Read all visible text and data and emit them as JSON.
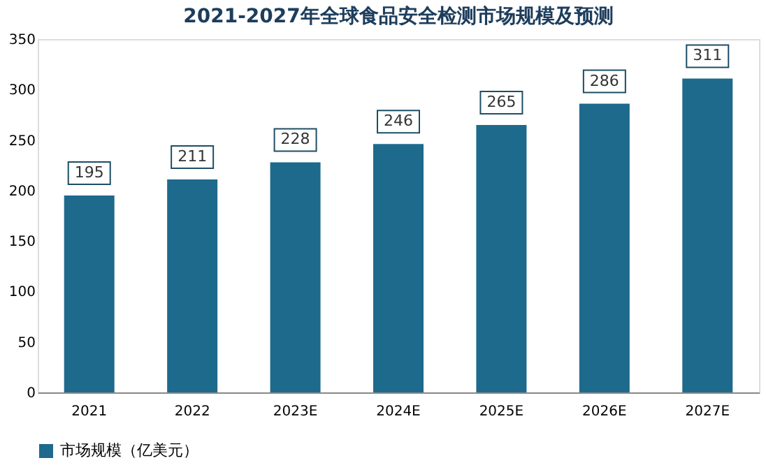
{
  "chart_data": {
    "type": "bar",
    "title": "2021-2027年全球食品安全检测市场规模及预测",
    "categories": [
      "2021",
      "2022",
      "2023E",
      "2024E",
      "2025E",
      "2026E",
      "2027E"
    ],
    "series": [
      {
        "name": "市场规模（亿美元）",
        "color": "#1d6a8c",
        "values": [
          195,
          211,
          228,
          246,
          265,
          286,
          311
        ]
      }
    ],
    "ylim": [
      0,
      350
    ],
    "yticks": [
      0,
      50,
      100,
      150,
      200,
      250,
      300,
      350
    ],
    "data_labels": true,
    "legend": "bottom",
    "grid": false
  }
}
